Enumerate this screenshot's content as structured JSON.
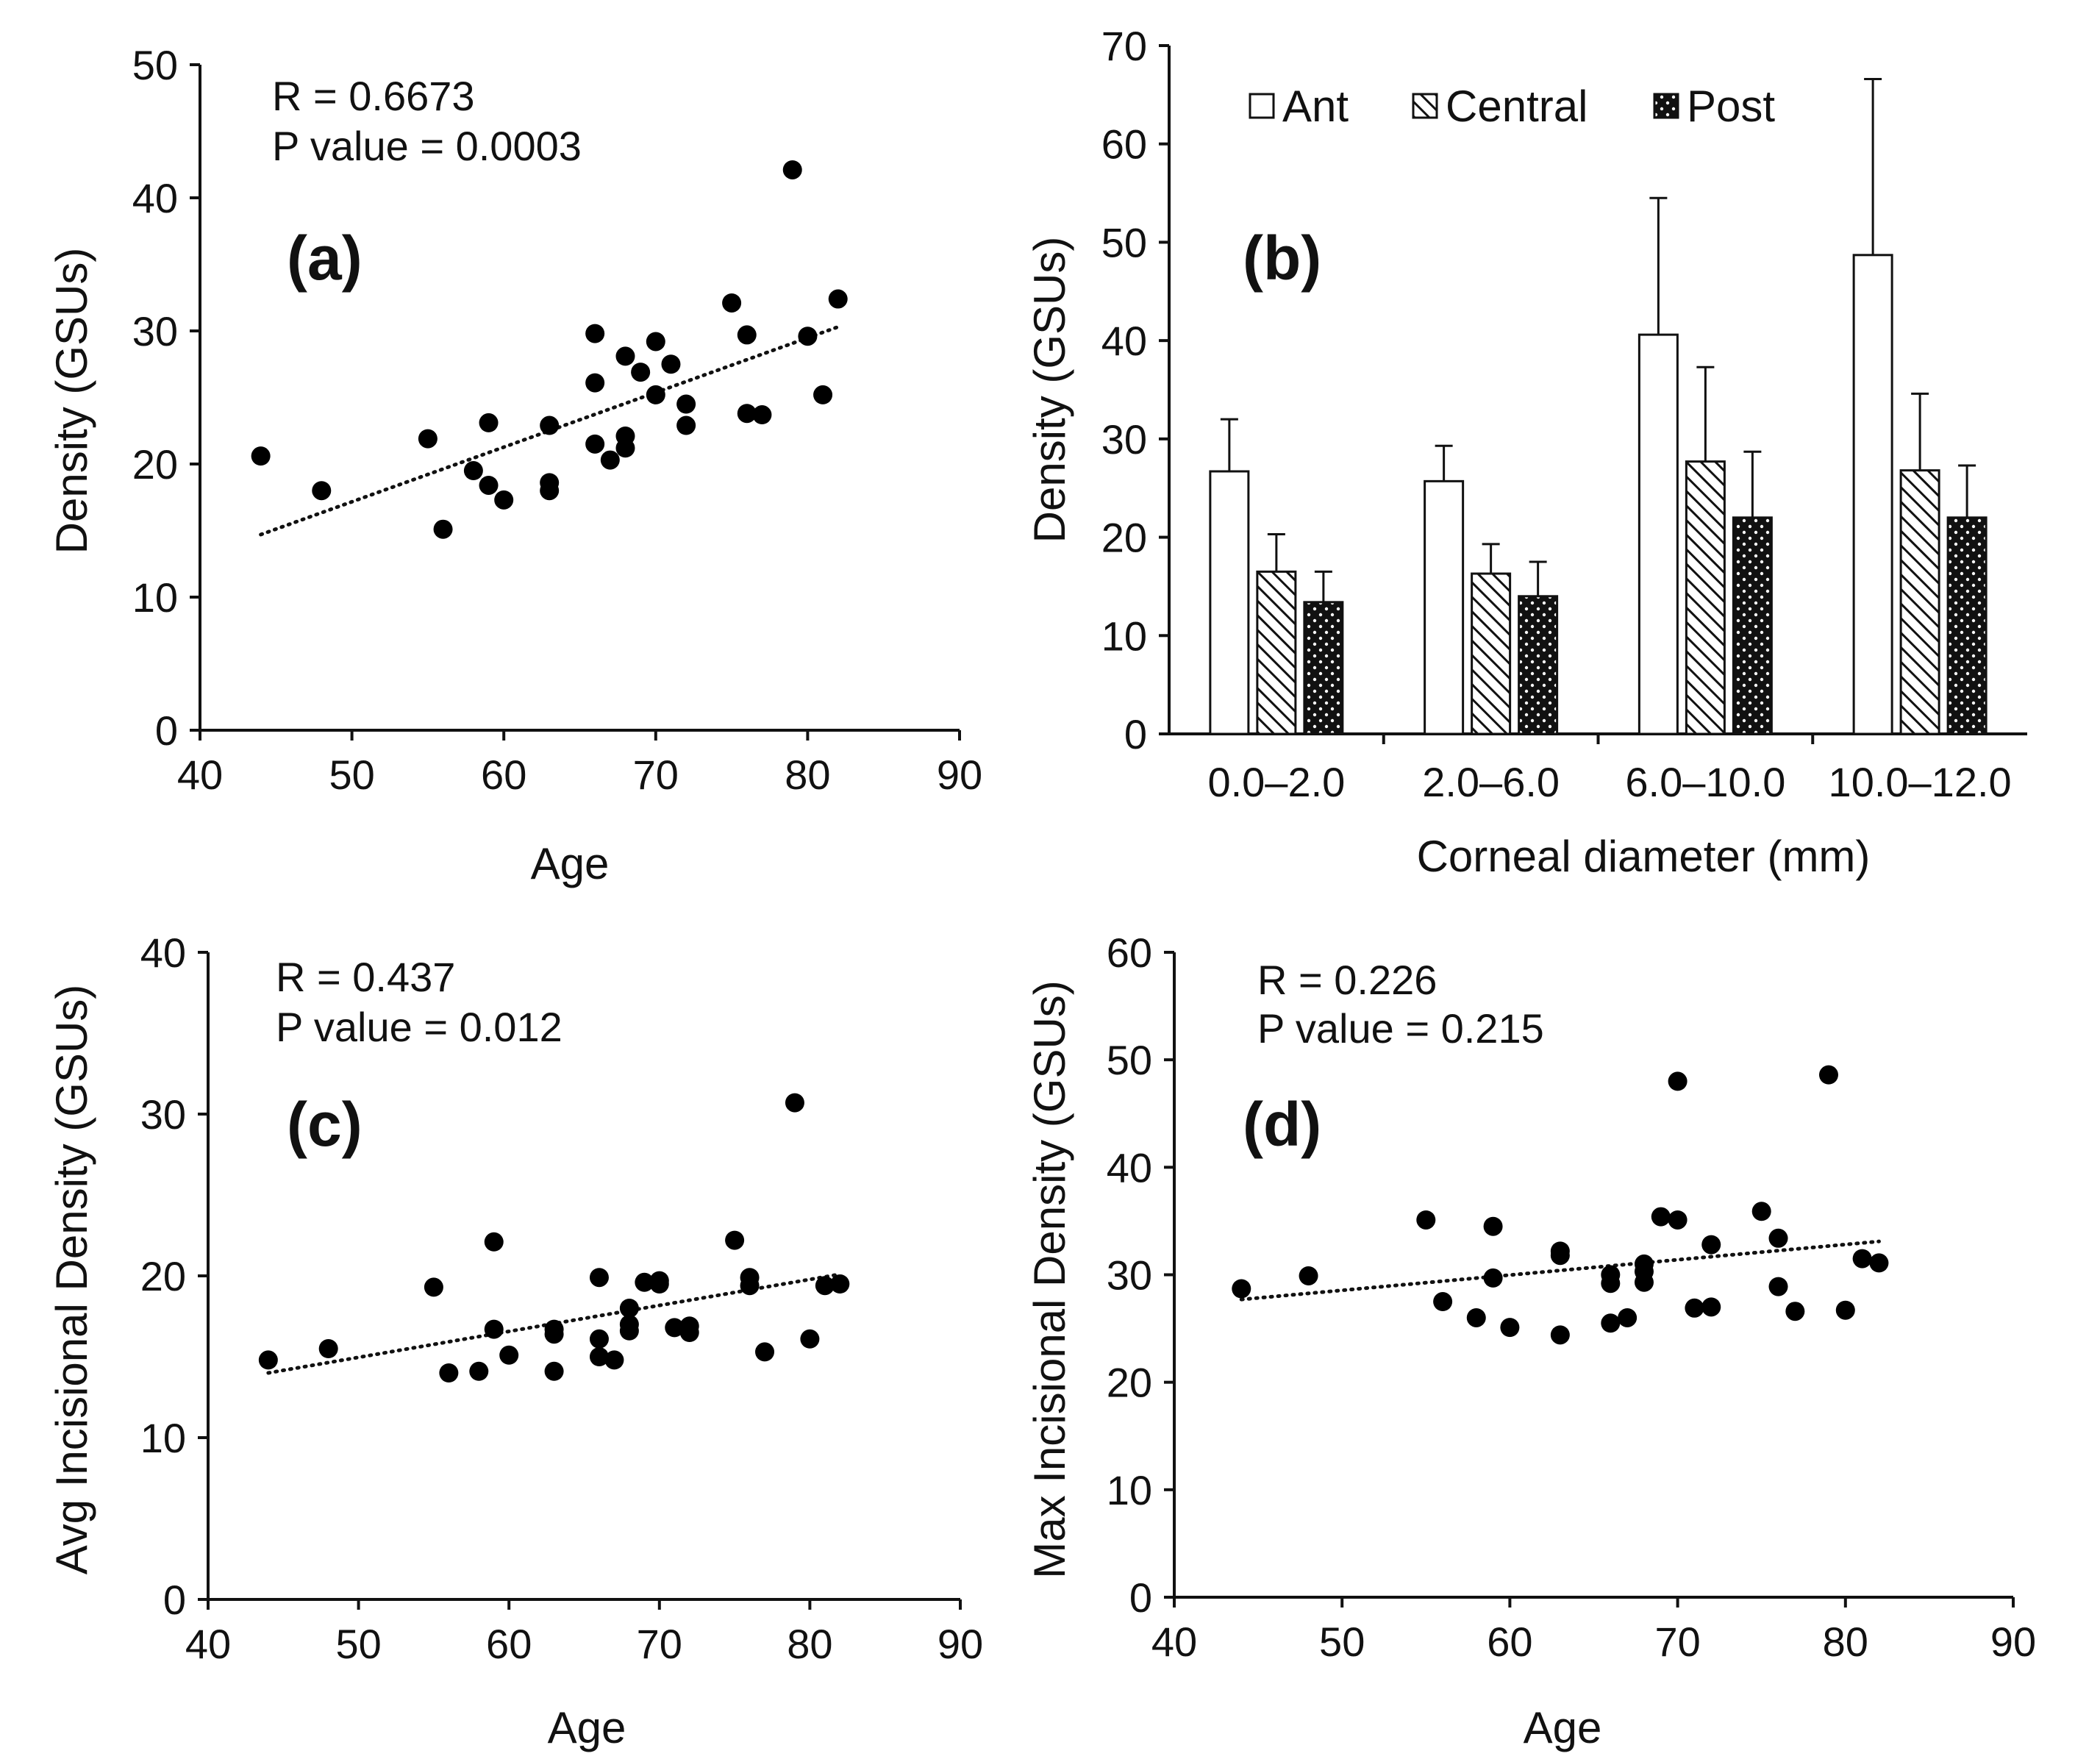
{
  "chart_data": [
    {
      "id": "a",
      "type": "scatter",
      "panel_label": "(a)",
      "xlabel": "Age",
      "ylabel": "Density (GSUs)",
      "xlim": [
        40,
        90
      ],
      "ylim": [
        0,
        50
      ],
      "xticks": [
        40,
        50,
        60,
        70,
        80,
        90
      ],
      "yticks": [
        0,
        10,
        20,
        30,
        40,
        50
      ],
      "annotations": [
        "R = 0.6673",
        "P value = 0.0003"
      ],
      "trendline": {
        "x": [
          44,
          82
        ],
        "y": [
          14.7,
          30.3
        ]
      },
      "points": [
        [
          44,
          20.6
        ],
        [
          48,
          18.0
        ],
        [
          55,
          21.9
        ],
        [
          56,
          15.1
        ],
        [
          58,
          19.5
        ],
        [
          59,
          23.1
        ],
        [
          59,
          18.4
        ],
        [
          60,
          17.3
        ],
        [
          63,
          22.9
        ],
        [
          63,
          18.6
        ],
        [
          63,
          18.0
        ],
        [
          66,
          29.8
        ],
        [
          66,
          26.1
        ],
        [
          66,
          21.5
        ],
        [
          67,
          20.3
        ],
        [
          68,
          28.1
        ],
        [
          68,
          22.1
        ],
        [
          68,
          21.2
        ],
        [
          69,
          26.9
        ],
        [
          70,
          29.2
        ],
        [
          70,
          25.2
        ],
        [
          71,
          27.5
        ],
        [
          72,
          24.5
        ],
        [
          72,
          22.9
        ],
        [
          75,
          32.1
        ],
        [
          76,
          29.7
        ],
        [
          76,
          23.8
        ],
        [
          77,
          23.7
        ],
        [
          79,
          42.1
        ],
        [
          80,
          29.6
        ],
        [
          81,
          25.2
        ],
        [
          82,
          32.4
        ]
      ]
    },
    {
      "id": "b",
      "type": "bar",
      "panel_label": "(b)",
      "xlabel": "Corneal diameter (mm)",
      "ylabel": "Density (GSUs)",
      "ylim": [
        0,
        70
      ],
      "yticks": [
        0,
        10,
        20,
        30,
        40,
        50,
        60,
        70
      ],
      "categories": [
        "0.0–2.0",
        "2.0–6.0",
        "6.0–10.0",
        "10.0–12.0"
      ],
      "series": [
        {
          "name": "Ant",
          "pattern": "open",
          "values": [
            26.7,
            25.7,
            40.6,
            48.7
          ],
          "errors": [
            5.3,
            3.6,
            13.9,
            17.9
          ]
        },
        {
          "name": "Central",
          "pattern": "hatched",
          "values": [
            16.5,
            16.3,
            27.7,
            26.8
          ],
          "errors": [
            3.8,
            3.0,
            9.6,
            7.8
          ]
        },
        {
          "name": "Post",
          "pattern": "dotted",
          "values": [
            13.4,
            14.0,
            22.0,
            22.0
          ],
          "errors": [
            3.1,
            3.5,
            6.7,
            5.3
          ]
        }
      ]
    },
    {
      "id": "c",
      "type": "scatter",
      "panel_label": "(c)",
      "xlabel": "Age",
      "ylabel": "Avg Incisional Density (GSUs)",
      "xlim": [
        40,
        90
      ],
      "ylim": [
        0,
        40
      ],
      "xticks": [
        40,
        50,
        60,
        70,
        80,
        90
      ],
      "yticks": [
        0,
        10,
        20,
        30,
        40
      ],
      "annotations": [
        "R = 0.437",
        "P value = 0.012"
      ],
      "trendline": {
        "x": [
          44,
          82
        ],
        "y": [
          14.0,
          20.1
        ]
      },
      "points": [
        [
          44,
          14.8
        ],
        [
          48,
          15.5
        ],
        [
          55,
          19.3
        ],
        [
          56,
          14.0
        ],
        [
          58,
          14.1
        ],
        [
          59,
          22.1
        ],
        [
          59,
          16.7
        ],
        [
          60,
          15.1
        ],
        [
          63,
          16.7
        ],
        [
          63,
          16.4
        ],
        [
          63,
          14.1
        ],
        [
          66,
          19.9
        ],
        [
          66,
          16.1
        ],
        [
          66,
          15.0
        ],
        [
          67,
          14.8
        ],
        [
          68,
          18.0
        ],
        [
          68,
          17.0
        ],
        [
          68,
          16.6
        ],
        [
          69,
          19.6
        ],
        [
          70,
          19.7
        ],
        [
          70,
          19.5
        ],
        [
          71,
          16.8
        ],
        [
          72,
          16.9
        ],
        [
          72,
          16.5
        ],
        [
          75,
          22.2
        ],
        [
          76,
          19.9
        ],
        [
          76,
          19.4
        ],
        [
          77,
          15.3
        ],
        [
          79,
          30.7
        ],
        [
          80,
          16.1
        ],
        [
          81,
          19.4
        ],
        [
          82,
          19.5
        ]
      ]
    },
    {
      "id": "d",
      "type": "scatter",
      "panel_label": "(d)",
      "xlabel": "Age",
      "ylabel": "Max Incisional Density (GSUs)",
      "xlim": [
        40,
        90
      ],
      "ylim": [
        0,
        60
      ],
      "xticks": [
        40,
        50,
        60,
        70,
        80,
        90
      ],
      "yticks": [
        0,
        10,
        20,
        30,
        40,
        50,
        60
      ],
      "annotations": [
        "R = 0.226",
        "P value = 0.215"
      ],
      "trendline": {
        "x": [
          44,
          82
        ],
        "y": [
          27.7,
          33.1
        ]
      },
      "points": [
        [
          44,
          28.7
        ],
        [
          48,
          29.9
        ],
        [
          55,
          35.1
        ],
        [
          56,
          27.5
        ],
        [
          58,
          26.0
        ],
        [
          59,
          34.5
        ],
        [
          59,
          29.7
        ],
        [
          60,
          25.1
        ],
        [
          63,
          32.2
        ],
        [
          63,
          31.8
        ],
        [
          63,
          24.4
        ],
        [
          66,
          30.0
        ],
        [
          66,
          29.2
        ],
        [
          66,
          25.5
        ],
        [
          67,
          26.0
        ],
        [
          68,
          31.0
        ],
        [
          68,
          30.3
        ],
        [
          68,
          29.3
        ],
        [
          69,
          35.4
        ],
        [
          70,
          48.0
        ],
        [
          70,
          35.1
        ],
        [
          71,
          26.9
        ],
        [
          72,
          32.8
        ],
        [
          72,
          27.0
        ],
        [
          75,
          35.9
        ],
        [
          76,
          33.4
        ],
        [
          76,
          28.9
        ],
        [
          77,
          26.6
        ],
        [
          79,
          48.6
        ],
        [
          80,
          26.7
        ],
        [
          81,
          31.5
        ],
        [
          82,
          31.1
        ]
      ]
    }
  ]
}
